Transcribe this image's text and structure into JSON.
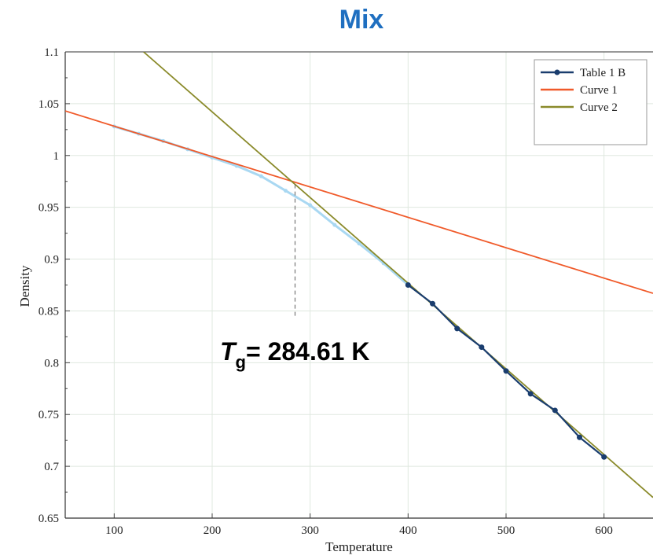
{
  "chart_data": {
    "type": "line",
    "title": "Mix",
    "xlabel": "Temperature",
    "ylabel": "Density",
    "xlim": [
      50,
      650
    ],
    "ylim": [
      0.65,
      1.1
    ],
    "xticks": [
      100,
      200,
      300,
      400,
      500,
      600
    ],
    "yticks": [
      0.65,
      0.7,
      0.75,
      0.8,
      0.85,
      0.9,
      0.95,
      1,
      1.05,
      1.1
    ],
    "ytick_labels": [
      "0.65",
      "0.7",
      "0.75",
      "0.8",
      "0.85",
      "0.9",
      "0.95",
      "1",
      "1.05",
      "1.1"
    ],
    "grid": true,
    "legend_position": "top-right",
    "series": [
      {
        "name": "Table 1 B",
        "color": "#1a3d6e",
        "x": [
          400,
          425,
          450,
          475,
          500,
          525,
          550,
          575,
          600
        ],
        "y": [
          0.875,
          0.857,
          0.833,
          0.815,
          0.792,
          0.77,
          0.754,
          0.728,
          0.709
        ]
      },
      {
        "name": "Curve 1",
        "color": "#f05a2a",
        "x": [
          50,
          650
        ],
        "y": [
          1.043,
          0.867
        ]
      },
      {
        "name": "Curve 2",
        "color": "#8a8a2a",
        "x": [
          130,
          650
        ],
        "y": [
          1.1,
          0.67
        ]
      }
    ],
    "faded_points": {
      "color": "#a9d8f2",
      "x": [
        100,
        125,
        150,
        175,
        200,
        225,
        250,
        275,
        300,
        325,
        350,
        375,
        400
      ],
      "y": [
        1.028,
        1.021,
        1.014,
        1.006,
        0.998,
        0.99,
        0.98,
        0.966,
        0.952,
        0.933,
        0.915,
        0.896,
        0.875
      ]
    },
    "annotation": {
      "symbol": "T",
      "subscript": "g",
      "text": "= 284.61 K",
      "x": 284.61,
      "y": 0.972,
      "dash_to_y": 0.845
    }
  }
}
